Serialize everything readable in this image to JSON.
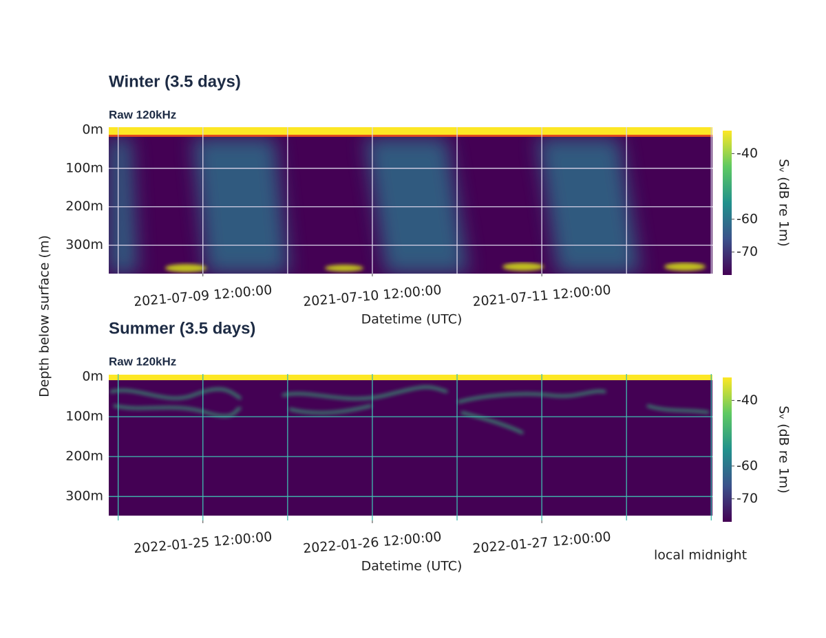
{
  "chart_data": [
    {
      "type": "echogram",
      "title": "Winter (3.5 days)",
      "subtitle": "Raw 120kHz",
      "xlabel": "Datetime (UTC)",
      "ylabel": "Depth below surface (m)",
      "xlim": [
        "2021-07-08 22:40:00",
        "2021-07-12 12:10:00"
      ],
      "xticks": [
        "2021-07-09 12:00:00",
        "2021-07-10 12:00:00",
        "2021-07-11 12:00:00"
      ],
      "xgrid": [
        "2021-07-09 00:00:00",
        "2021-07-09 12:00:00",
        "2021-07-10 00:00:00",
        "2021-07-10 12:00:00",
        "2021-07-11 00:00:00",
        "2021-07-11 12:00:00",
        "2021-07-12 00:00:00",
        "2021-07-12 12:00:00"
      ],
      "ylim": [
        -7,
        374
      ],
      "y_reversed": true,
      "yticks": [
        {
          "value": 0,
          "label": "0m"
        },
        {
          "value": 100,
          "label": "100m"
        },
        {
          "value": 200,
          "label": "200m"
        },
        {
          "value": 300,
          "label": "300m"
        }
      ],
      "grid_color": "#d9d4e8",
      "midnight_markers": [
        "2021-07-09 16:00:00",
        "2021-07-10 16:00:00",
        "2021-07-11 15:00:00"
      ],
      "colorbar_label": "Sᵥ (dB re 1m)",
      "clim": [
        -77,
        -33
      ],
      "cticks": [
        -40,
        -60,
        -70
      ]
    },
    {
      "type": "echogram",
      "title": "Summer (3.5 days)",
      "subtitle": "Raw 120kHz",
      "xlabel": "Datetime (UTC)",
      "xlim": [
        "2022-01-24 22:40:00",
        "2022-01-28 12:10:00"
      ],
      "xticks": [
        "2022-01-25 12:00:00",
        "2022-01-26 12:00:00",
        "2022-01-27 12:00:00"
      ],
      "xgrid": [
        "2022-01-25 00:00:00",
        "2022-01-25 12:00:00",
        "2022-01-26 00:00:00",
        "2022-01-26 12:00:00",
        "2022-01-27 00:00:00",
        "2022-01-27 12:00:00",
        "2022-01-28 00:00:00",
        "2022-01-28 12:00:00"
      ],
      "ylim": [
        -7,
        360
      ],
      "y_reversed": true,
      "yticks": [
        {
          "value": 0,
          "label": "0m"
        },
        {
          "value": 100,
          "label": "100m"
        },
        {
          "value": 200,
          "label": "200m"
        },
        {
          "value": 300,
          "label": "300m"
        }
      ],
      "grid_color": "#3fbfb0",
      "midnight_markers": [
        "2022-01-25 17:00:00",
        "2022-01-26 17:30:00",
        "2022-01-27 18:00:00"
      ],
      "marker_label": "local midnight",
      "colorbar_label": "Sᵥ (dB re 1m)",
      "clim": [
        -77,
        -33
      ],
      "cticks": [
        -40,
        -60,
        -70
      ]
    }
  ]
}
